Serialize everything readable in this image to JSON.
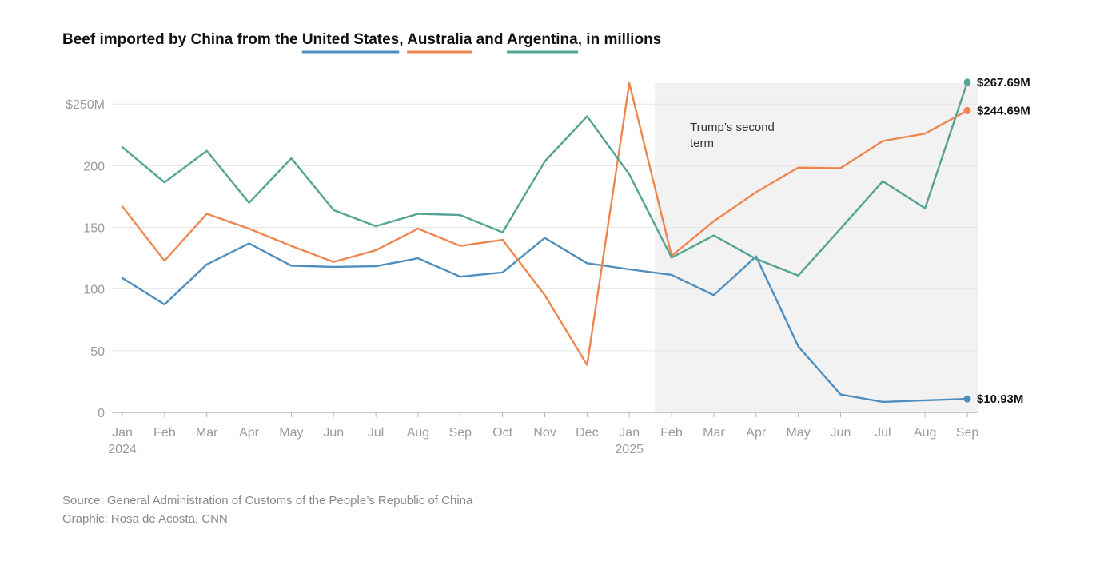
{
  "chart_data": {
    "type": "line",
    "title": {
      "prefix": "Beef imported by China from the ",
      "sep1": ", ",
      "sep2": " and ",
      "suffix": ", in millions"
    },
    "categories": [
      "Jan 2024",
      "Feb 2024",
      "Mar 2024",
      "Apr 2024",
      "May 2024",
      "Jun 2024",
      "Jul 2024",
      "Aug 2024",
      "Sep 2024",
      "Oct 2024",
      "Nov 2024",
      "Dec 2024",
      "Jan 2025",
      "Feb 2025",
      "Mar 2025",
      "Apr 2025",
      "May 2025",
      "Jun 2025",
      "Jul 2025",
      "Aug 2025",
      "Sep 2025"
    ],
    "x_tick_labels": [
      {
        "month": "Jan",
        "year": "2024"
      },
      {
        "month": "Feb",
        "year": ""
      },
      {
        "month": "Mar",
        "year": ""
      },
      {
        "month": "Apr",
        "year": ""
      },
      {
        "month": "May",
        "year": ""
      },
      {
        "month": "Jun",
        "year": ""
      },
      {
        "month": "Jul",
        "year": ""
      },
      {
        "month": "Aug",
        "year": ""
      },
      {
        "month": "Sep",
        "year": ""
      },
      {
        "month": "Oct",
        "year": ""
      },
      {
        "month": "Nov",
        "year": ""
      },
      {
        "month": "Dec",
        "year": ""
      },
      {
        "month": "Jan",
        "year": "2025"
      },
      {
        "month": "Feb",
        "year": ""
      },
      {
        "month": "Mar",
        "year": ""
      },
      {
        "month": "Apr",
        "year": ""
      },
      {
        "month": "May",
        "year": ""
      },
      {
        "month": "Jun",
        "year": ""
      },
      {
        "month": "Jul",
        "year": ""
      },
      {
        "month": "Aug",
        "year": ""
      },
      {
        "month": "Sep",
        "year": ""
      }
    ],
    "y_ticks": [
      {
        "value": 0,
        "label": "0"
      },
      {
        "value": 50,
        "label": "50"
      },
      {
        "value": 100,
        "label": "100"
      },
      {
        "value": 150,
        "label": "150"
      },
      {
        "value": 200,
        "label": "200"
      },
      {
        "value": 250,
        "label": "$250M"
      }
    ],
    "ylim": [
      0,
      272
    ],
    "grid": true,
    "series": [
      {
        "name": "United States",
        "color": "#4f8fc0",
        "values": [
          109,
          87.5,
          120,
          137,
          119,
          118,
          118.5,
          125,
          110,
          113.5,
          141.5,
          121,
          116,
          111.5,
          95,
          126.5,
          53.5,
          14.5,
          8.5,
          9.8,
          10.93
        ],
        "end_label": "$10.93M"
      },
      {
        "name": "Australia",
        "color": "#ee8650",
        "values": [
          167,
          123,
          161,
          149,
          135,
          122,
          131.5,
          149,
          135,
          140,
          95,
          38.5,
          267,
          127,
          155,
          178.5,
          198.5,
          198,
          220,
          226,
          244.69
        ],
        "end_label": "$244.69M"
      },
      {
        "name": "Argentina",
        "color": "#54a493",
        "values": [
          215,
          186.5,
          212,
          170,
          206,
          164,
          151,
          161,
          160,
          146,
          203.5,
          240,
          193,
          125.5,
          143.5,
          124.5,
          111,
          149,
          187.5,
          165.5,
          267.69
        ],
        "end_label": "$267.69M"
      }
    ],
    "shaded_region": {
      "start_index": 12.6,
      "end_index": 20.25,
      "label_line1": "Trump’s second",
      "label_line2": "term"
    }
  },
  "footer": {
    "source": "Source: General Administration of Customs of the People’s Republic of China",
    "credit": "Graphic: Rosa de Acosta, CNN"
  }
}
